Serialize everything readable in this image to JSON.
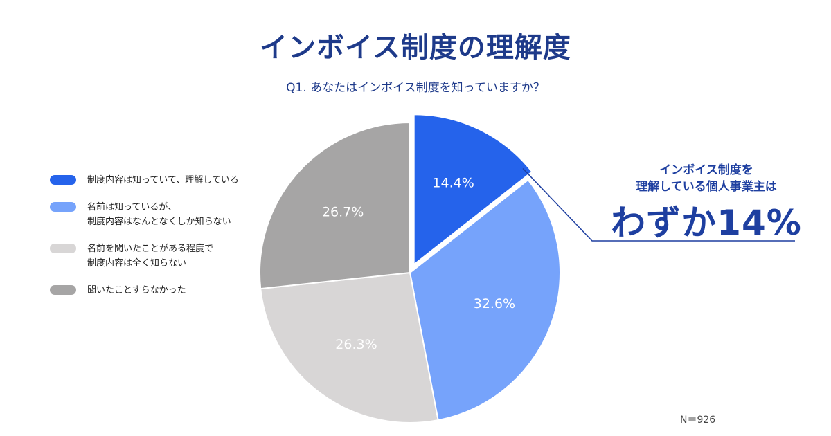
{
  "title": "インボイス制度の理解度",
  "question": "Q1. あなたはインボイス制度を知っていますか？",
  "chart_data": {
    "type": "pie",
    "categories": [
      "制度内容は知っていて、理解している",
      "名前は知っているが、\n制度内容はなんとなくしか知らない",
      "名前を聞いたことがある程度で\n制度内容は全く知らない",
      "聞いたことすらなかった"
    ],
    "values": [
      14.4,
      32.6,
      26.3,
      26.7
    ],
    "labels": [
      "14.4%",
      "32.6%",
      "26.3%",
      "26.7%"
    ],
    "colors": [
      "#2563eb",
      "#76a3fb",
      "#d8d6d6",
      "#a6a5a5"
    ],
    "exploded": [
      true,
      false,
      false,
      false
    ],
    "legend_position": "left",
    "sample_size": "N＝926"
  },
  "callout": {
    "line1": "インボイス制度を\n理解している個人事業主は",
    "line2": "わずか14%",
    "color": "#1e3fa0"
  }
}
